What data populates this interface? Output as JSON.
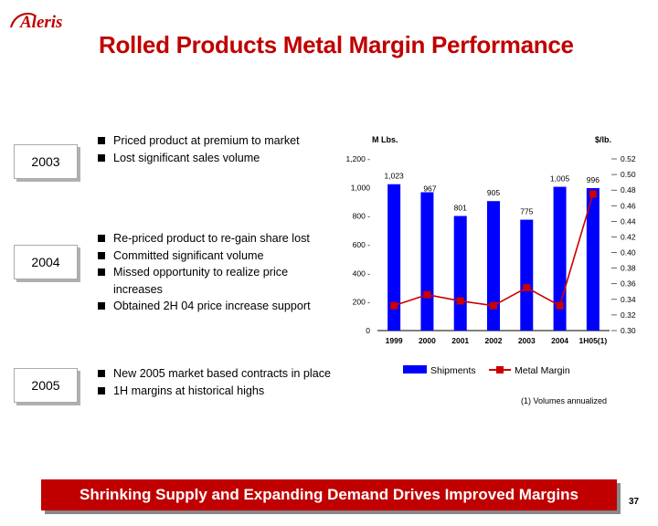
{
  "logo": {
    "text": "Aleris",
    "accent_color": "#c00000"
  },
  "header": {
    "title": "Rolled Products Metal Margin Performance"
  },
  "sections": [
    {
      "year": "2003",
      "bullets": [
        "Priced product at premium to market",
        "Lost significant sales volume"
      ]
    },
    {
      "year": "2004",
      "bullets": [
        "Re-priced product to re-gain share lost",
        "Committed significant volume",
        "Missed opportunity to realize price",
        "increases",
        "Obtained 2H 04 price increase support"
      ]
    },
    {
      "year": "2005",
      "bullets": [
        "New 2005 market based contracts in place",
        "1H margins at historical highs"
      ]
    }
  ],
  "chart_data": {
    "type": "bar+line",
    "categories": [
      "1999",
      "2000",
      "2001",
      "2002",
      "2003",
      "2004",
      "1H05(1)"
    ],
    "left_axis": {
      "label": "M Lbs.",
      "ticks": [
        "1,200 -",
        "1,000",
        "800 -",
        "600 -",
        "400 -",
        "200 -",
        "0"
      ],
      "tick_values": [
        1200,
        1000,
        800,
        600,
        400,
        200,
        0
      ],
      "ylim": [
        0,
        1200
      ]
    },
    "right_axis": {
      "label": "$/lb.",
      "ticks": [
        "0.52",
        "0.50",
        "0.48",
        "0.46",
        "0.44",
        "0.42",
        "0.40",
        "0.38",
        "0.36",
        "0.34",
        "0.32",
        "0.30"
      ],
      "tick_values": [
        0.52,
        0.5,
        0.48,
        0.46,
        0.44,
        0.42,
        0.4,
        0.38,
        0.36,
        0.34,
        0.32,
        0.3
      ],
      "ylim": [
        0.3,
        0.52
      ]
    },
    "series": [
      {
        "name": "Shipments",
        "type": "bar",
        "color": "#0000ff",
        "values": [
          1023,
          967,
          801,
          905,
          775,
          1005,
          996
        ],
        "labels": [
          "1,023",
          "967",
          "801",
          "905",
          "775",
          "1,005",
          "996"
        ]
      },
      {
        "name": "Metal Margin",
        "type": "line",
        "color": "#cc0000",
        "values": [
          0.332,
          0.346,
          0.338,
          0.332,
          0.355,
          0.332,
          0.475
        ]
      }
    ],
    "legend": [
      "Shipments",
      "Metal Margin"
    ]
  },
  "footnote": "(1) Volumes annualized",
  "banner": {
    "text": "Shrinking Supply and Expanding Demand Drives Improved Margins"
  },
  "page_number": "37"
}
